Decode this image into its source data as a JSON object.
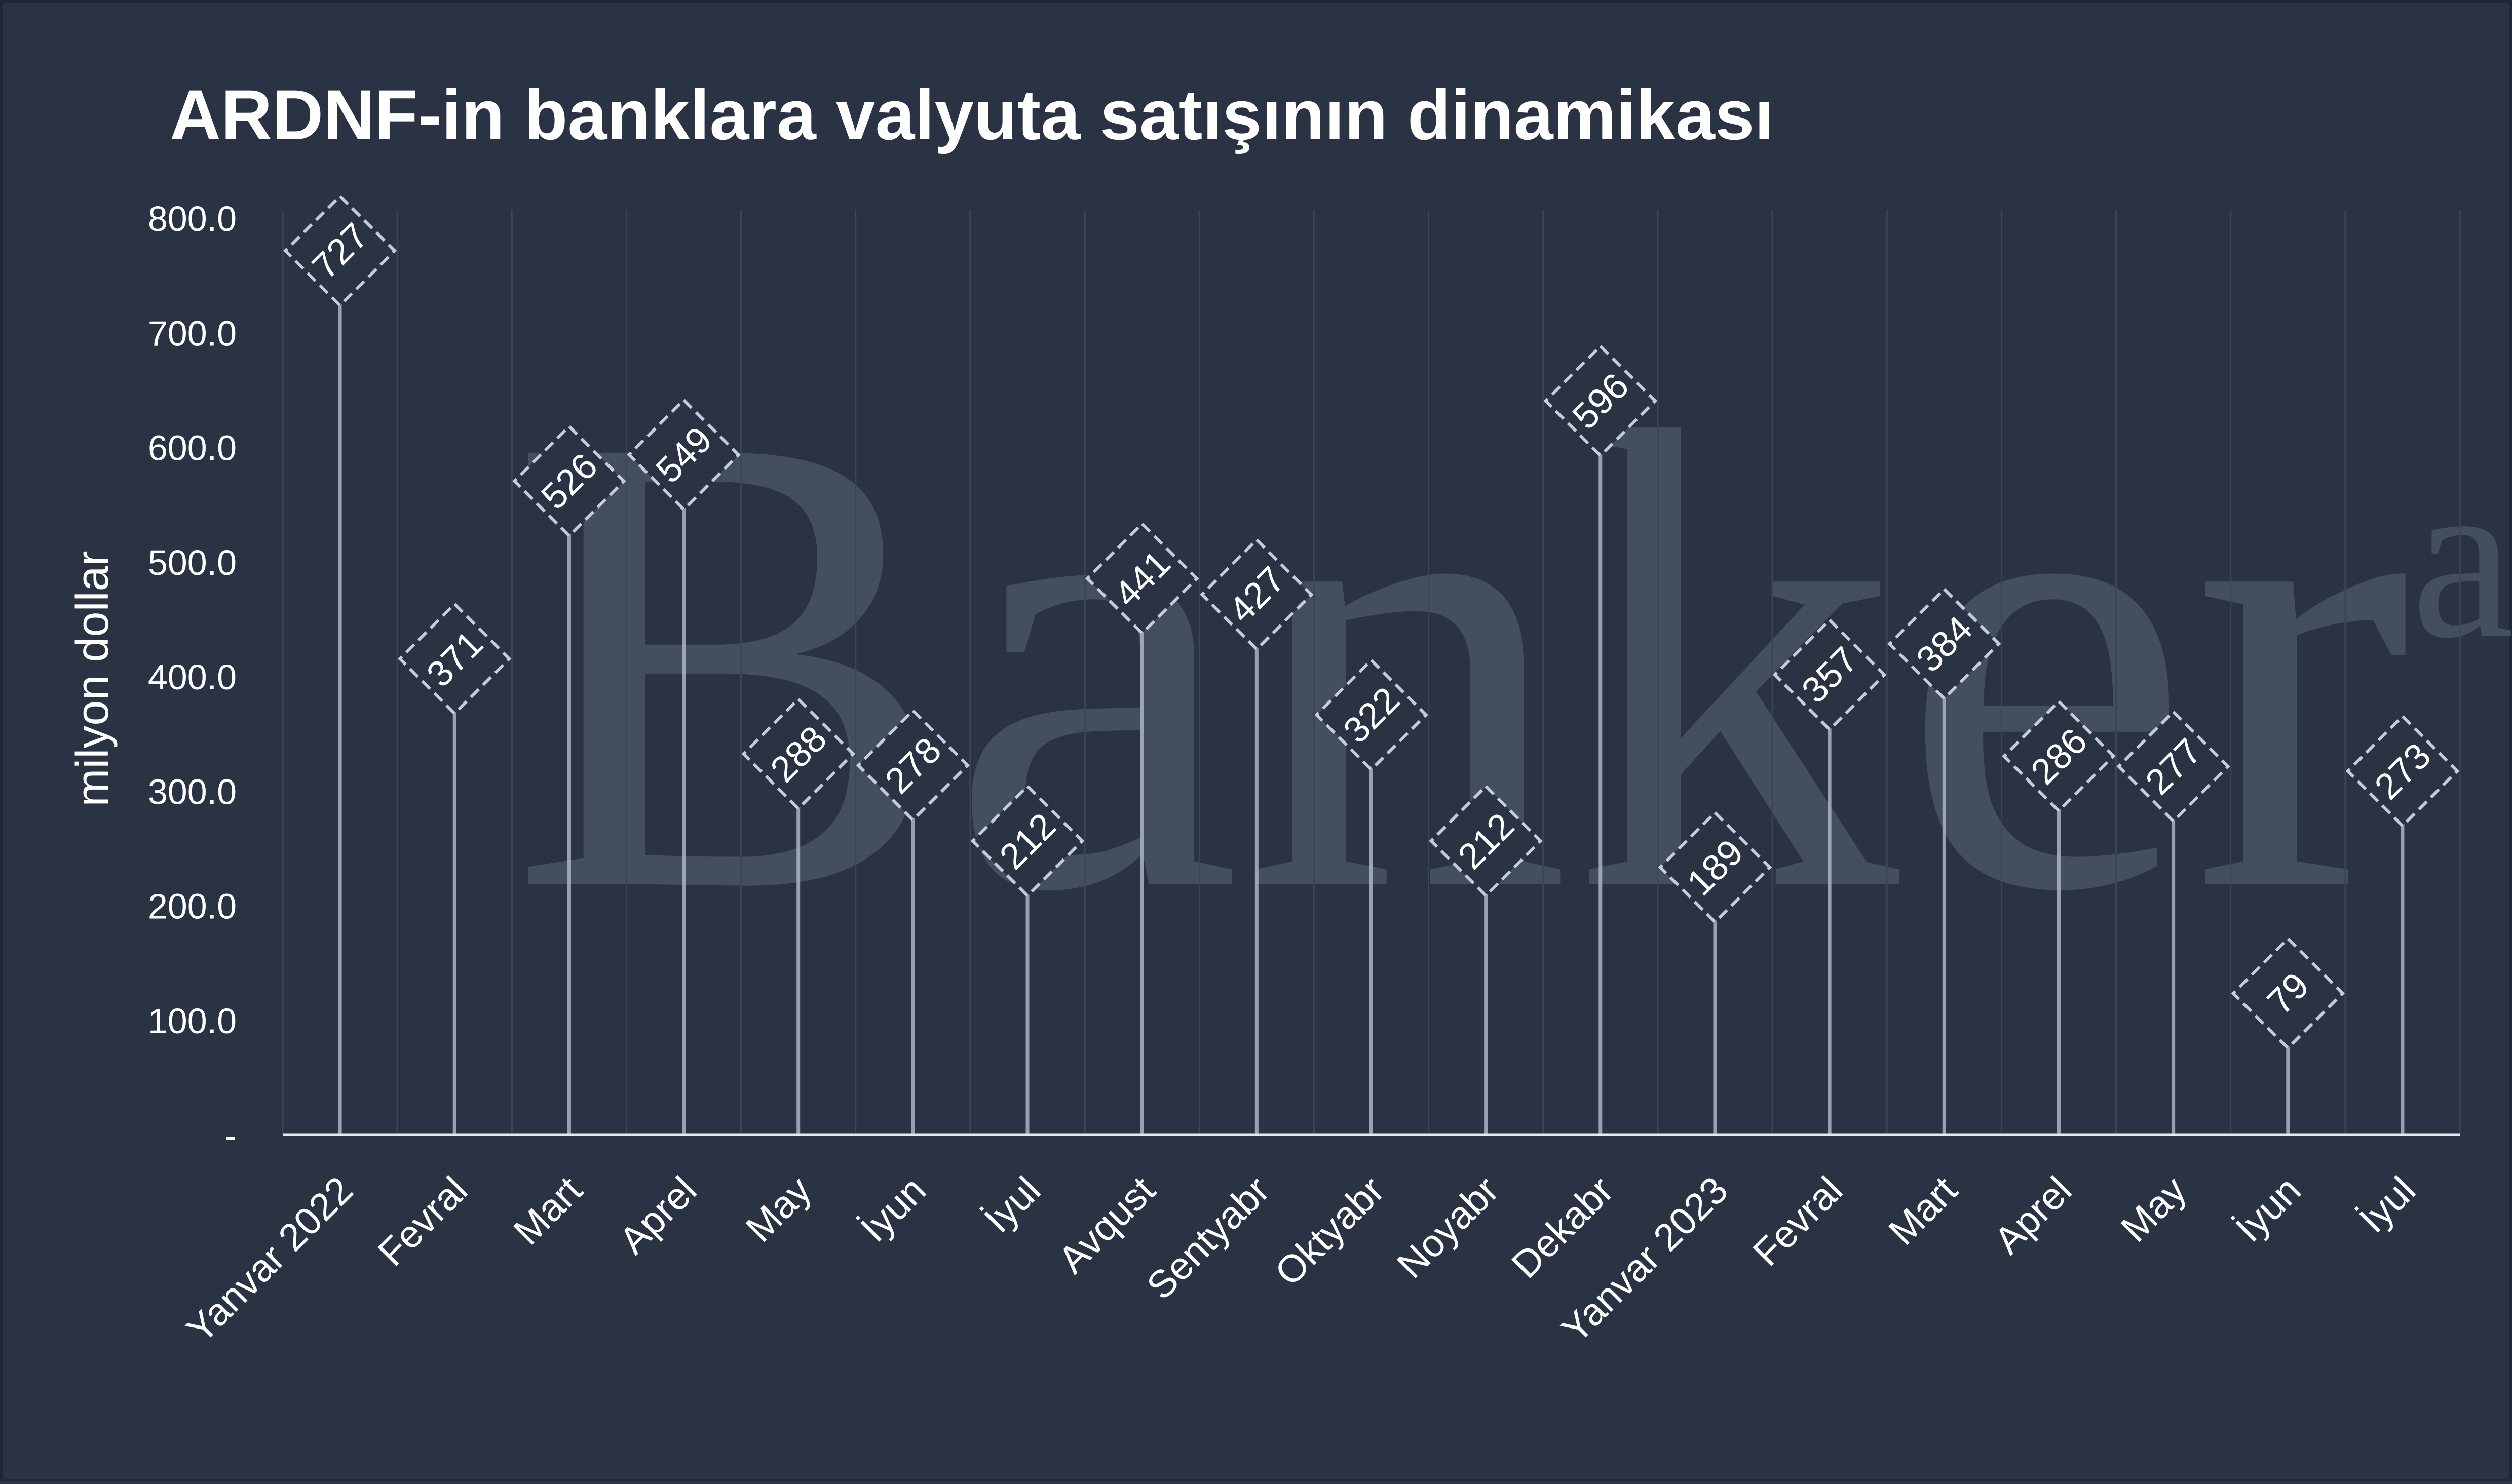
{
  "chart_data": {
    "type": "lollipop",
    "title": "ARDNF-in banklara valyuta satışının dinamikası",
    "ylabel": "milyon dollar",
    "xlabel": "",
    "ylim": [
      0,
      800
    ],
    "y_ticks": [
      {
        "value": 0,
        "label": "-"
      },
      {
        "value": 100,
        "label": "100.0"
      },
      {
        "value": 200,
        "label": "200.0"
      },
      {
        "value": 300,
        "label": "300.0"
      },
      {
        "value": 400,
        "label": "400.0"
      },
      {
        "value": 500,
        "label": "500.0"
      },
      {
        "value": 600,
        "label": "600.0"
      },
      {
        "value": 700,
        "label": "700.0"
      },
      {
        "value": 800,
        "label": "800.0"
      }
    ],
    "categories": [
      "Yanvar 2022",
      "Fevral",
      "Mart",
      "Aprel",
      "May",
      "İyun",
      "İyul",
      "Avqust",
      "Sentyabr",
      "Oktyabr",
      "Noyabr",
      "Dekabr",
      "Yanvar 2023",
      "Fevral",
      "Mart",
      "Aprel",
      "May",
      "İyun",
      "İyul"
    ],
    "values": [
      727,
      371,
      526,
      549,
      288,
      278,
      212,
      441,
      427,
      322,
      212,
      596,
      189,
      357,
      384,
      286,
      277,
      79,
      273
    ],
    "data_labels": [
      "727",
      "371",
      "526",
      "549",
      "288",
      "278",
      "212",
      "441",
      "427",
      "322",
      "212",
      "596",
      "189",
      "357",
      "384",
      "286",
      "277",
      "79",
      "273"
    ],
    "grid": "vertical",
    "legend": "none"
  },
  "watermark": {
    "main": "Banker",
    "suffix": "az"
  },
  "colors": {
    "background": "#2a3344",
    "border": "#1c2738",
    "text": "#ffffff",
    "axis": "#e6e9ef",
    "gridline": "#3b4558",
    "stem": "#aab5c6",
    "marker_border": "#c3ccda",
    "watermark": "#4a5566"
  }
}
